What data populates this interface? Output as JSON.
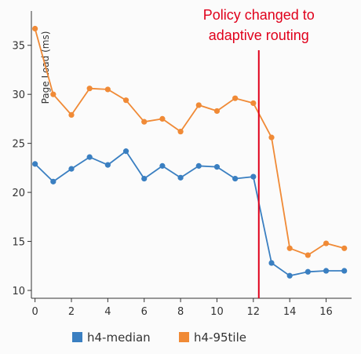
{
  "chart_data": {
    "type": "line",
    "ylabel": "Page Load (ms)",
    "xlabel": "",
    "x": [
      0,
      1,
      2,
      3,
      4,
      5,
      6,
      7,
      8,
      9,
      10,
      11,
      12,
      13,
      14,
      15,
      16,
      17
    ],
    "xticks": [
      0,
      2,
      4,
      6,
      8,
      10,
      12,
      14,
      16
    ],
    "yticks": [
      10,
      15,
      20,
      25,
      30,
      35
    ],
    "xlim": [
      -0.2,
      17.4
    ],
    "ylim": [
      9.2,
      38.5
    ],
    "series": [
      {
        "name": "h4-median",
        "color": "#3a7fc1",
        "values": [
          22.9,
          21.1,
          22.4,
          23.6,
          22.8,
          24.2,
          21.4,
          22.7,
          21.5,
          22.7,
          22.6,
          21.4,
          21.6,
          12.8,
          11.5,
          11.9,
          12.0,
          12.0
        ]
      },
      {
        "name": "h4-95tile",
        "color": "#f08a36",
        "values": [
          36.7,
          30.0,
          27.9,
          30.6,
          30.5,
          29.4,
          27.2,
          27.5,
          26.2,
          28.9,
          28.3,
          29.6,
          29.1,
          25.6,
          14.3,
          13.6,
          14.8,
          14.3
        ]
      }
    ],
    "annotation": {
      "x": 12.3,
      "text_lines": [
        "Policy changed to",
        "adaptive routing"
      ],
      "color": "#e0001b"
    },
    "grid": false,
    "legend": "bottom"
  }
}
